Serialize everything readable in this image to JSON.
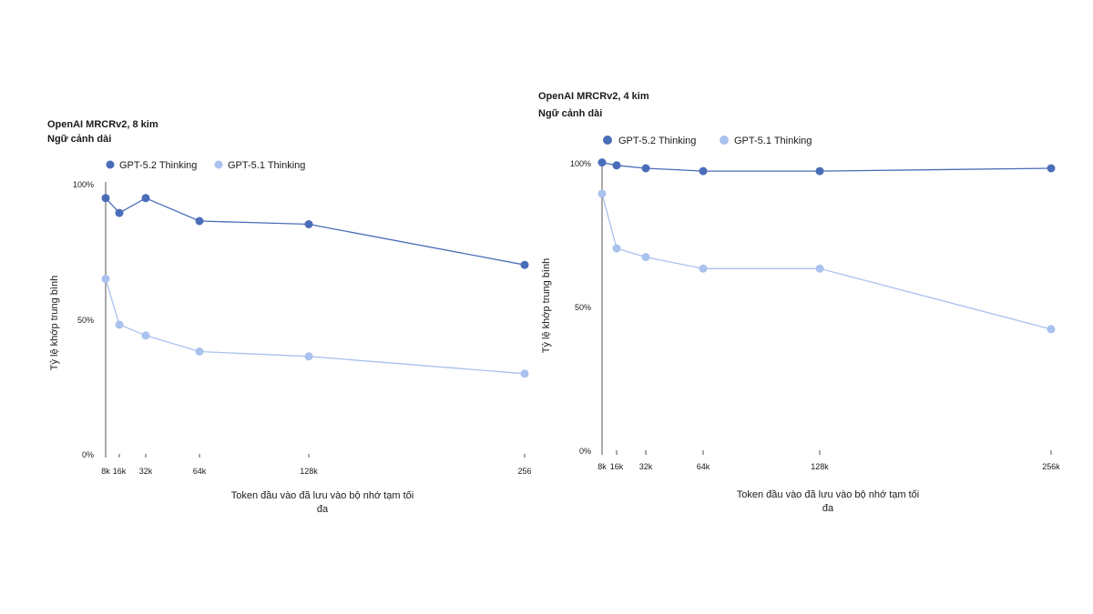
{
  "chart_data": [
    {
      "type": "line",
      "title": "OpenAI MRCRv2, 8 kim",
      "subtitle": "Ngữ cảnh dài",
      "x": [
        8,
        16,
        32,
        64,
        128,
        256
      ],
      "xtick_labels": [
        "8k",
        "16k",
        "32k",
        "64k",
        "128k",
        "256"
      ],
      "xlabel_lines": [
        "Token đầu vào đã lưu vào bộ nhớ tạm tối",
        "đa"
      ],
      "ylabel": "Tỷ lệ khớp trung bình",
      "ylim": [
        0,
        100
      ],
      "yticks": [
        0,
        50,
        100
      ],
      "ytick_labels": [
        "0%",
        "50%",
        "100%"
      ],
      "series": [
        {
          "name": "GPT-5.2 Thinking",
          "color": "#4a6db8",
          "values": [
            95,
            89.5,
            95,
            86.5,
            85.3,
            70.2
          ]
        },
        {
          "name": "GPT-5.1 Thinking",
          "color": "#a9c2ee",
          "values": [
            65,
            48,
            44,
            38,
            36.2,
            29.8
          ]
        }
      ]
    },
    {
      "type": "line",
      "title": "OpenAI MRCRv2, 4 kim",
      "subtitle": "Ngữ cảnh dài",
      "x": [
        8,
        16,
        32,
        64,
        128,
        256
      ],
      "xtick_labels": [
        "8k",
        "16k",
        "32k",
        "64k",
        "128k",
        "256k"
      ],
      "xlabel_lines": [
        "Token đầu vào đã lưu vào bộ nhớ tạm tối",
        "đa"
      ],
      "ylabel": "Tỷ lệ khớp trung bình",
      "ylim": [
        0,
        100
      ],
      "yticks": [
        0,
        50,
        100
      ],
      "ytick_labels": [
        "0%",
        "50%",
        "100%"
      ],
      "series": [
        {
          "name": "GPT-5.2 Thinking",
          "color": "#4a6db8",
          "values": [
            99.8,
            98.8,
            97.8,
            96.8,
            96.8,
            97.8
          ]
        },
        {
          "name": "GPT-5.1 Thinking",
          "color": "#a9c2ee",
          "values": [
            89,
            70,
            67,
            63,
            63,
            42
          ]
        }
      ]
    }
  ]
}
